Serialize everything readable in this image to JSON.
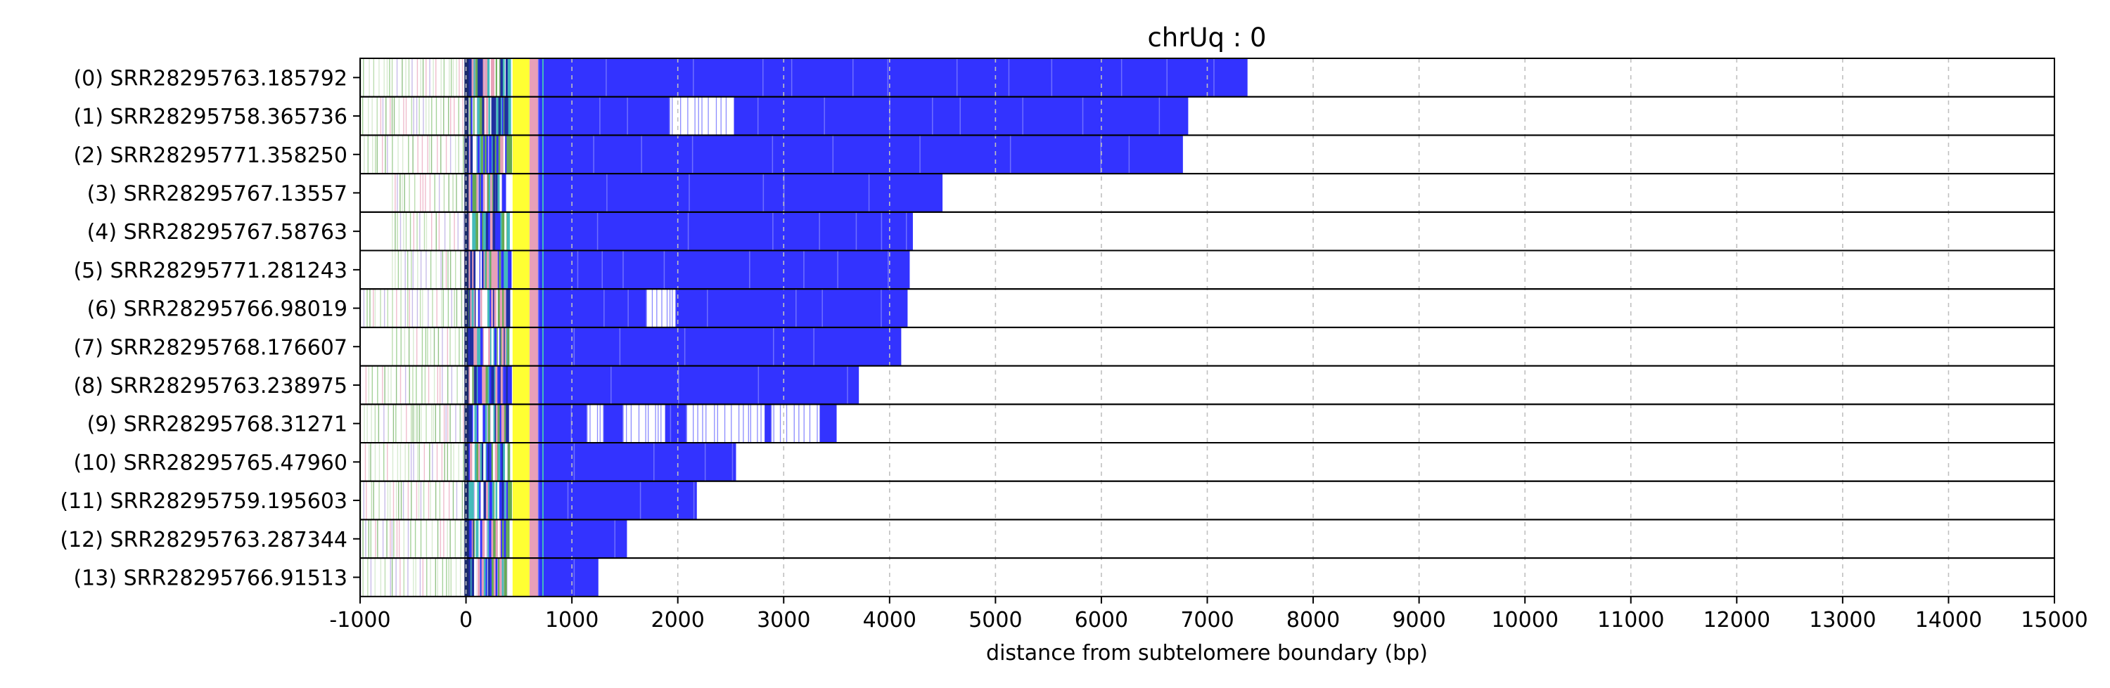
{
  "chart_data": {
    "type": "bar",
    "title": "chrUq : 0",
    "xlabel": "distance from subtelomere boundary (bp)",
    "ylabel": "",
    "xlim": [
      -1000,
      15000
    ],
    "xticks": [
      -1000,
      0,
      1000,
      2000,
      3000,
      4000,
      5000,
      6000,
      7000,
      8000,
      9000,
      10000,
      11000,
      12000,
      13000,
      14000,
      15000
    ],
    "xtick_labels": [
      "-1000",
      "0",
      "1000",
      "2000",
      "3000",
      "4000",
      "5000",
      "6000",
      "7000",
      "8000",
      "9000",
      "10000",
      "11000",
      "12000",
      "13000",
      "14000",
      "15000"
    ],
    "grid": "x-dashed",
    "legend": "none",
    "colors": {
      "telomere": "#3333ff",
      "subtelomere_yellow": "#ffff33",
      "green_variant": "#66aa55",
      "pink_variant": "#e8a0b8",
      "cyan_variant": "#44bbbb",
      "grid": "#bfbfbf"
    },
    "categories": [
      "(0) SRR28295763.185792",
      "(1) SRR28295758.365736",
      "(2) SRR28295771.358250",
      "(3) SRR28295767.13557",
      "(4) SRR28295767.58763",
      "(5) SRR28295771.281243",
      "(6) SRR28295766.98019",
      "(7) SRR28295768.176607",
      "(8) SRR28295763.238975",
      "(9) SRR28295768.31271",
      "(10) SRR28295765.47960",
      "(11) SRR28295759.195603",
      "(12) SRR28295763.287344",
      "(13) SRR28295766.91513"
    ],
    "read_end_bp": [
      7380,
      6820,
      6770,
      4500,
      4220,
      4190,
      4170,
      4110,
      3710,
      3500,
      2550,
      2180,
      1520,
      1250
    ],
    "read_start_bp": [
      -1000,
      -1000,
      -1000,
      -700,
      -700,
      -700,
      -1000,
      -700,
      -1000,
      -1000,
      -1000,
      -1000,
      -1000,
      -1000
    ],
    "gaps_bp": [
      [],
      [
        [
          1920,
          2530
        ]
      ],
      [],
      [],
      [],
      [],
      [
        [
          1700,
          1980
        ]
      ],
      [],
      [],
      [
        [
          1140,
          1300
        ],
        [
          1480,
          1880
        ],
        [
          2080,
          2820
        ],
        [
          2880,
          3340
        ]
      ],
      [],
      [],
      [],
      []
    ]
  }
}
